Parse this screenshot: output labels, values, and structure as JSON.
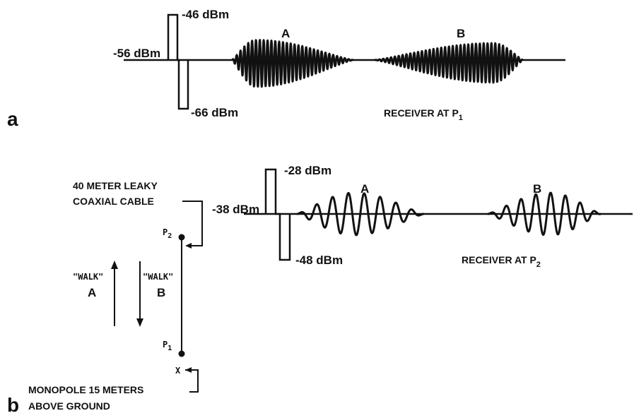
{
  "panel_a": {
    "panel_letter": "a",
    "ref_level": "-56 dBm",
    "cal_high": "-46 dBm",
    "cal_low": "-66 dBm",
    "event_a": "A",
    "event_b": "B",
    "receiver": "RECEIVER AT P",
    "receiver_sub": "1"
  },
  "panel_b": {
    "panel_letter": "b",
    "cable_line1": "40 METER LEAKY",
    "cable_line2": "COAXIAL CABLE",
    "ref_level": "-38 dBm",
    "cal_high": "-28 dBm",
    "cal_low": "-48 dBm",
    "event_a": "A",
    "event_b": "B",
    "receiver": "RECEIVER AT P",
    "receiver_sub": "2",
    "p2_label": "P",
    "p2_sub": "2",
    "p1_label": "P",
    "p1_sub": "1",
    "walk_a_quote": "\"WALK\"",
    "walk_a_letter": "A",
    "walk_b_quote": "\"WALK\"",
    "walk_b_letter": "B",
    "x_mark": "X",
    "monopole_line1": "MONOPOLE 15 METERS",
    "monopole_line2": "ABOVE GROUND"
  }
}
